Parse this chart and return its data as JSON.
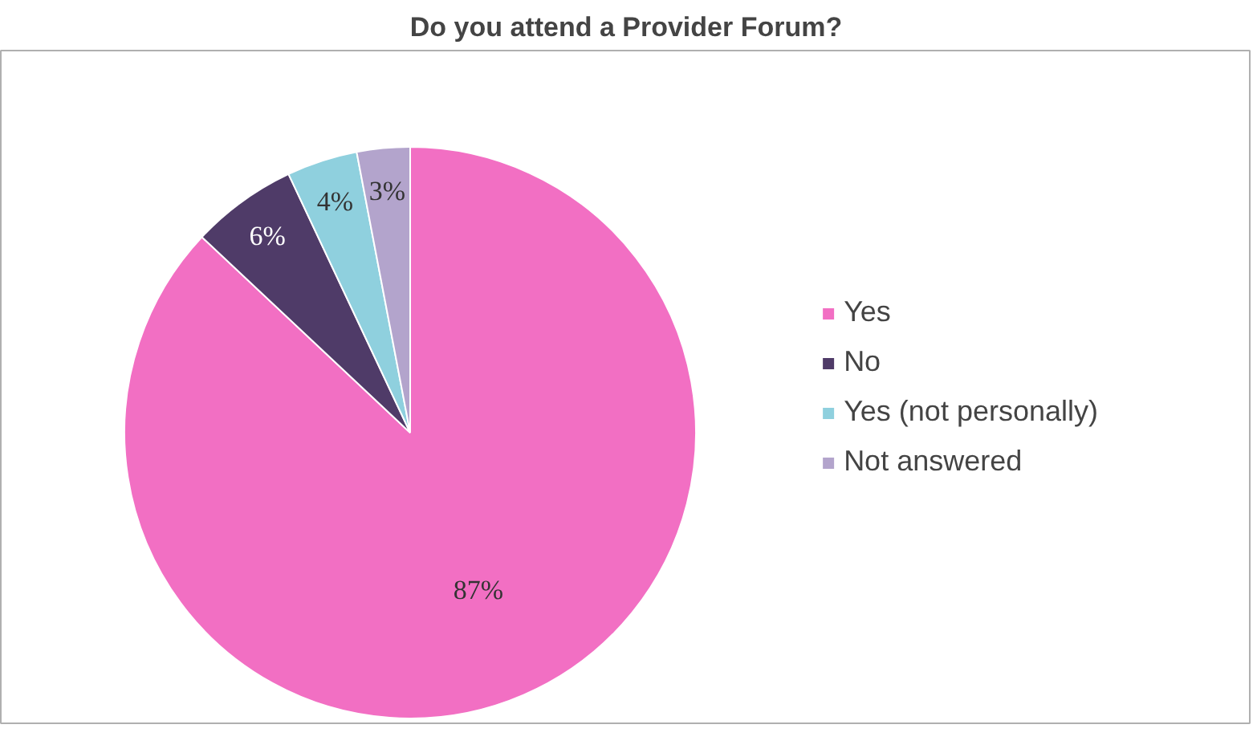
{
  "chart_data": {
    "type": "pie",
    "title": "Do you attend a Provider Forum?",
    "categories": [
      "Yes",
      "No",
      "Yes (not personally)",
      "Not answered"
    ],
    "values": [
      87,
      6,
      4,
      3
    ],
    "colors": [
      "#f26fc3",
      "#4f3b68",
      "#8fd0de",
      "#b3a4cc"
    ],
    "value_labels": [
      "87%",
      "6%",
      "4%",
      "3%"
    ],
    "legend": "right"
  }
}
